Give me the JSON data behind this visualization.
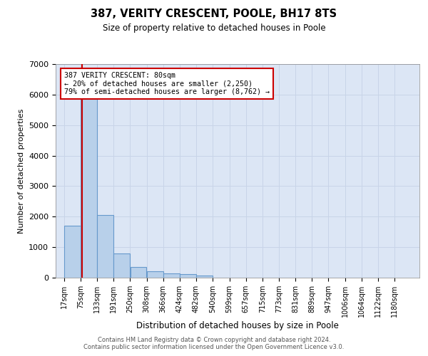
{
  "title": "387, VERITY CRESCENT, POOLE, BH17 8TS",
  "subtitle": "Size of property relative to detached houses in Poole",
  "xlabel": "Distribution of detached houses by size in Poole",
  "ylabel": "Number of detached properties",
  "bar_color": "#b8d0ea",
  "bar_edge_color": "#6699cc",
  "grid_color": "#c8d4e8",
  "background_color": "#dce6f5",
  "annotation_line_color": "#cc0000",
  "footer_line1": "Contains HM Land Registry data © Crown copyright and database right 2024.",
  "footer_line2": "Contains public sector information licensed under the Open Government Licence v3.0.",
  "property_size_sqm": 80,
  "annotation_text": "387 VERITY CRESCENT: 80sqm\n← 20% of detached houses are smaller (2,250)\n79% of semi-detached houses are larger (8,762) →",
  "bin_labels": [
    "17sqm",
    "75sqm",
    "133sqm",
    "191sqm",
    "250sqm",
    "308sqm",
    "366sqm",
    "424sqm",
    "482sqm",
    "540sqm",
    "599sqm",
    "657sqm",
    "715sqm",
    "773sqm",
    "831sqm",
    "889sqm",
    "947sqm",
    "1006sqm",
    "1064sqm",
    "1122sqm",
    "1180sqm"
  ],
  "bin_edges": [
    17,
    75,
    133,
    191,
    250,
    308,
    366,
    424,
    482,
    540,
    599,
    657,
    715,
    773,
    831,
    889,
    947,
    1006,
    1064,
    1122,
    1180
  ],
  "bar_heights": [
    1700,
    6400,
    2050,
    800,
    350,
    200,
    140,
    110,
    75,
    0,
    0,
    0,
    0,
    0,
    0,
    0,
    0,
    0,
    0,
    0
  ],
  "ylim": [
    0,
    7000
  ],
  "yticks": [
    0,
    1000,
    2000,
    3000,
    4000,
    5000,
    6000,
    7000
  ]
}
